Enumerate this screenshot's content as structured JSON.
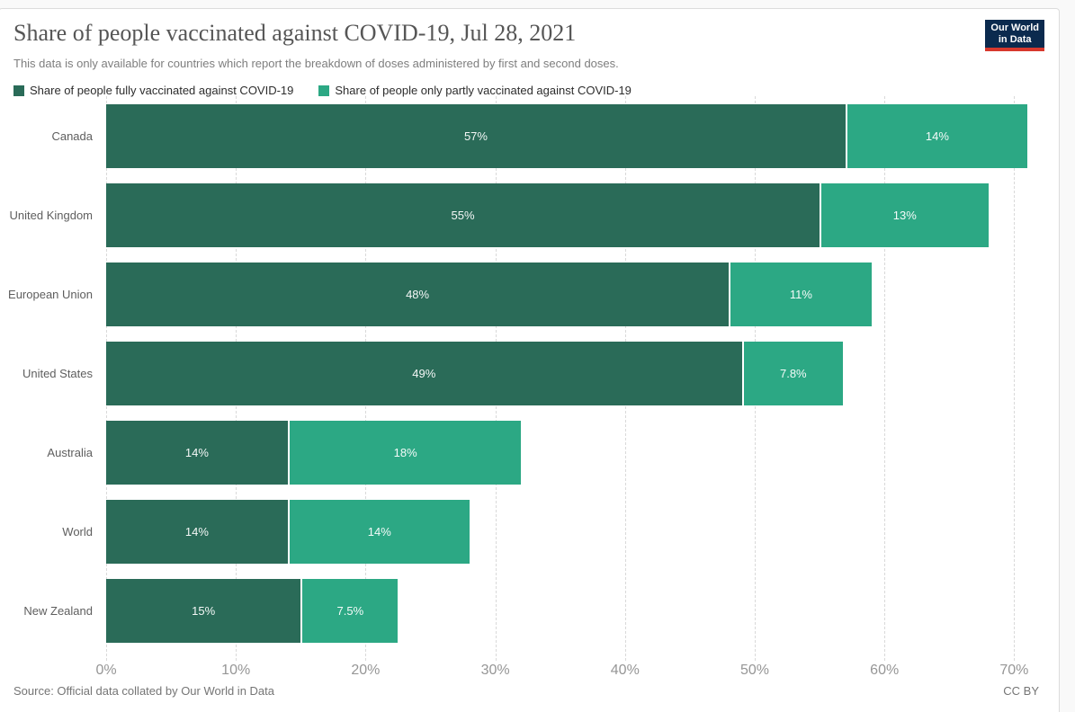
{
  "page": {
    "title": "Share of people vaccinated against COVID-19, Jul 28, 2021",
    "subtitle": "This data is only available for countries which report the breakdown of doses administered by first and second doses.",
    "source": "Source: Official data collated by Our World in Data",
    "license": "CC BY",
    "logo": {
      "line1": "Our World",
      "line2": "in Data"
    }
  },
  "colors": {
    "fully_vaccinated": "#2a6b58",
    "partly_vaccinated": "#2ca884",
    "logo_bg": "#0b2a4e",
    "logo_red": "#d7382d"
  },
  "legend": [
    {
      "label": "Share of people fully vaccinated against COVID-19",
      "color": "#2a6b58"
    },
    {
      "label": "Share of people only partly vaccinated against COVID-19",
      "color": "#2ca884"
    }
  ],
  "chart_data": {
    "type": "bar",
    "orientation": "horizontal",
    "stacked": true,
    "title": "Share of people vaccinated against COVID-19, Jul 28, 2021",
    "categories": [
      "Canada",
      "United Kingdom",
      "European Union",
      "United States",
      "Australia",
      "World",
      "New Zealand"
    ],
    "series": [
      {
        "name": "Share of people fully vaccinated against COVID-19",
        "color": "#2a6b58",
        "values": [
          57,
          55,
          48,
          49,
          14,
          14,
          15
        ],
        "labels": [
          "57%",
          "55%",
          "48%",
          "49%",
          "14%",
          "14%",
          "15%"
        ]
      },
      {
        "name": "Share of people only partly vaccinated against COVID-19",
        "color": "#2ca884",
        "values": [
          14,
          13,
          11,
          7.8,
          18,
          14,
          7.5
        ],
        "labels": [
          "14%",
          "13%",
          "11%",
          "7.8%",
          "18%",
          "14%",
          "7.5%"
        ]
      }
    ],
    "x_ticks": [
      "0%",
      "10%",
      "20%",
      "30%",
      "40%",
      "50%",
      "60%",
      "70%"
    ],
    "xlim": [
      0,
      70
    ],
    "grid": "dashed-vertical",
    "legend_position": "top"
  }
}
